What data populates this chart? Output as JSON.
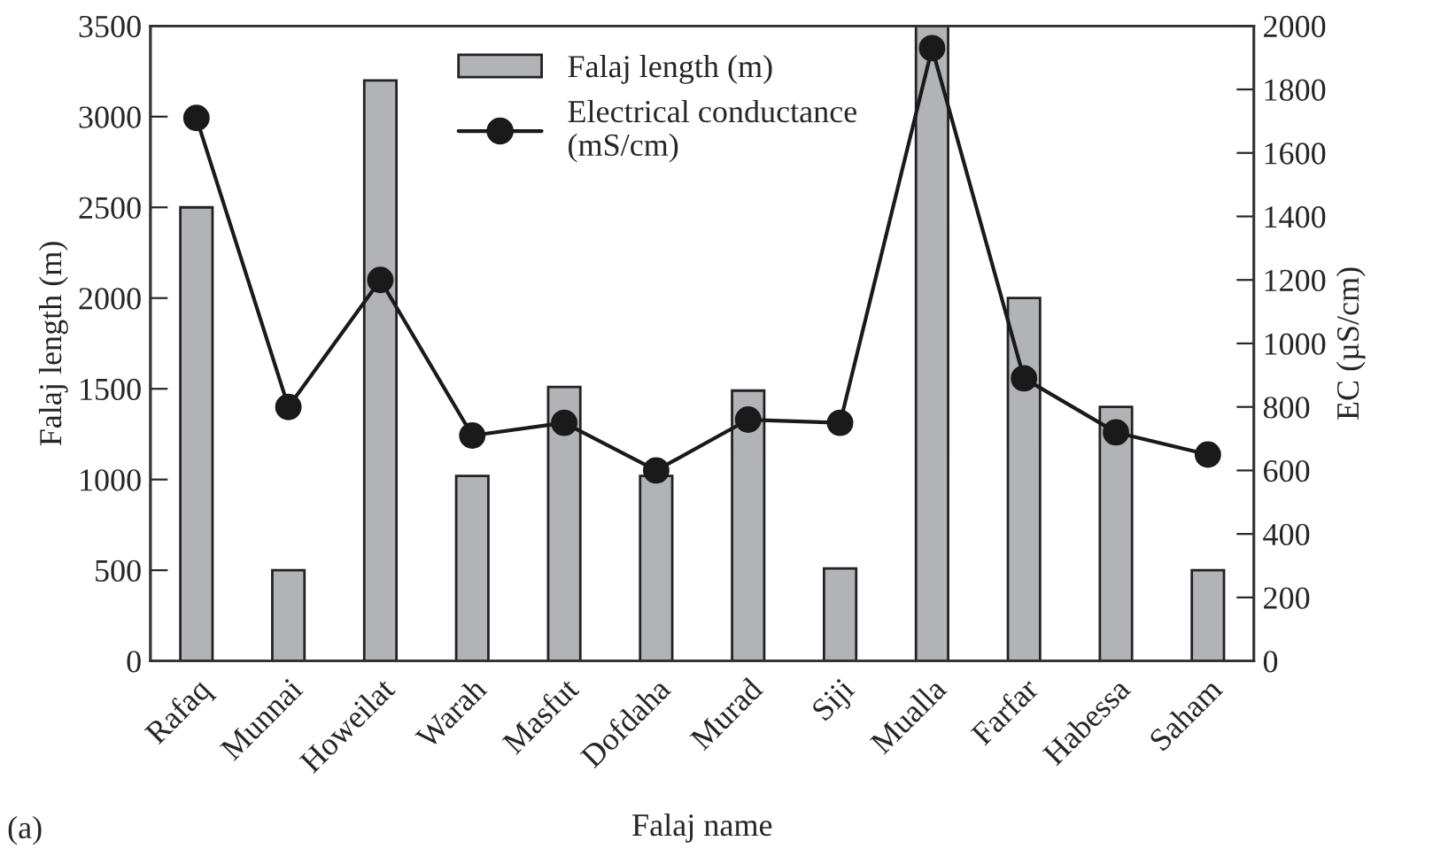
{
  "chart_data": {
    "type": "bar",
    "categories": [
      "Rafaq",
      "Munnai",
      "Howeilat",
      "Warah",
      "Masfut",
      "Dofdaha",
      "Murad",
      "Siji",
      "Mualla",
      "Farfar",
      "Habessa",
      "Saham"
    ],
    "series": [
      {
        "name": "Falaj length (m)",
        "color": "#b1b3b6",
        "values": [
          2500,
          500,
          3200,
          1020,
          1510,
          1020,
          1490,
          510,
          3500,
          2000,
          1400,
          500
        ]
      },
      {
        "name": "Electrical conductance\n(mS/cm)",
        "type": "line",
        "axis": "y2",
        "color": "#1a1a1a",
        "marker": "circle",
        "values": [
          1710,
          800,
          1200,
          710,
          750,
          600,
          760,
          750,
          1930,
          890,
          720,
          650
        ]
      }
    ],
    "xlabel": "Falaj name",
    "ylabel": "Falaj length (m)",
    "y2label": "EC (µS/cm)",
    "ylim": [
      0,
      3500
    ],
    "yticks": [
      0,
      500,
      1000,
      1500,
      2000,
      2500,
      3000,
      3500
    ],
    "y2lim": [
      0,
      2000
    ],
    "y2ticks": [
      0,
      200,
      400,
      600,
      800,
      1000,
      1200,
      1400,
      1600,
      1800,
      2000
    ],
    "legend": "top",
    "grid": false,
    "annotations": [
      "(a)"
    ]
  }
}
